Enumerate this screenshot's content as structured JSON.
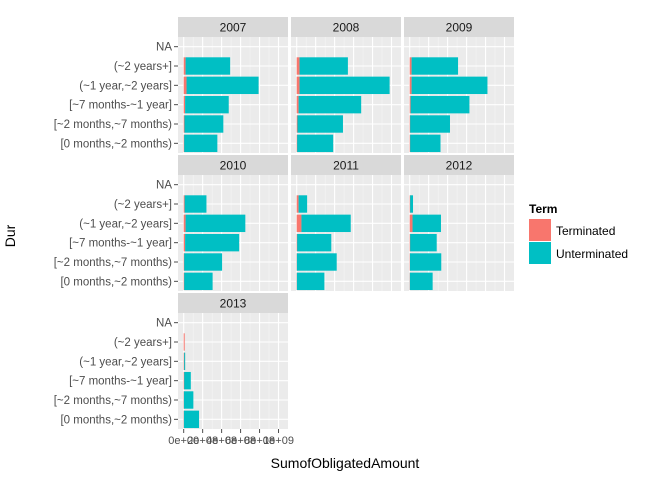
{
  "chart_data": {
    "type": "bar",
    "orientation": "horizontal",
    "stacked": true,
    "xlabel": "SumofObligatedAmount",
    "ylabel": "Dur",
    "categories": [
      "NA",
      "(~2 years+]",
      "(~1 year,~2 years]",
      "[~7 months-~1 year]",
      "[~2 months,~7 months)",
      "[0 months,~2 months)"
    ],
    "x_tick_labels": [
      "0e+00",
      "2e+08",
      "4e+08",
      "6e+08",
      "8e+08",
      "1e+09"
    ],
    "x_tick_values": [
      0,
      200000000,
      400000000,
      600000000,
      800000000,
      1000000000
    ],
    "xlim": [
      -60000000,
      1100000000
    ],
    "grid": true,
    "legend": {
      "title": "Term",
      "position": "right",
      "entries": [
        {
          "name": "Terminated",
          "color": "#F8766D"
        },
        {
          "name": "Unterminated",
          "color": "#00BFC4"
        }
      ]
    },
    "panels": [
      {
        "title": "2007",
        "terminated": [
          0,
          20000000,
          30000000,
          15000000,
          8000000,
          5000000
        ],
        "unterminated": [
          0,
          470000000,
          760000000,
          460000000,
          410000000,
          350000000
        ]
      },
      {
        "title": "2008",
        "terminated": [
          0,
          30000000,
          30000000,
          20000000,
          8000000,
          5000000
        ],
        "unterminated": [
          0,
          510000000,
          950000000,
          660000000,
          480000000,
          380000000
        ]
      },
      {
        "title": "2009",
        "terminated": [
          0,
          20000000,
          20000000,
          10000000,
          5000000,
          5000000
        ],
        "unterminated": [
          0,
          490000000,
          800000000,
          620000000,
          420000000,
          320000000
        ]
      },
      {
        "title": "2010",
        "terminated": [
          0,
          10000000,
          20000000,
          15000000,
          5000000,
          5000000
        ],
        "unterminated": [
          0,
          230000000,
          630000000,
          570000000,
          400000000,
          300000000
        ]
      },
      {
        "title": "2011",
        "terminated": [
          0,
          20000000,
          50000000,
          5000000,
          2000000,
          2000000
        ],
        "unterminated": [
          0,
          90000000,
          520000000,
          360000000,
          420000000,
          290000000
        ]
      },
      {
        "title": "2012",
        "terminated": [
          0,
          5000000,
          30000000,
          5000000,
          3000000,
          2000000
        ],
        "unterminated": [
          0,
          30000000,
          300000000,
          280000000,
          330000000,
          240000000
        ]
      },
      {
        "title": "2013",
        "terminated": [
          0,
          5000000,
          5000000,
          5000000,
          2000000,
          2000000
        ],
        "unterminated": [
          0,
          0,
          10000000,
          70000000,
          100000000,
          160000000
        ]
      }
    ]
  }
}
